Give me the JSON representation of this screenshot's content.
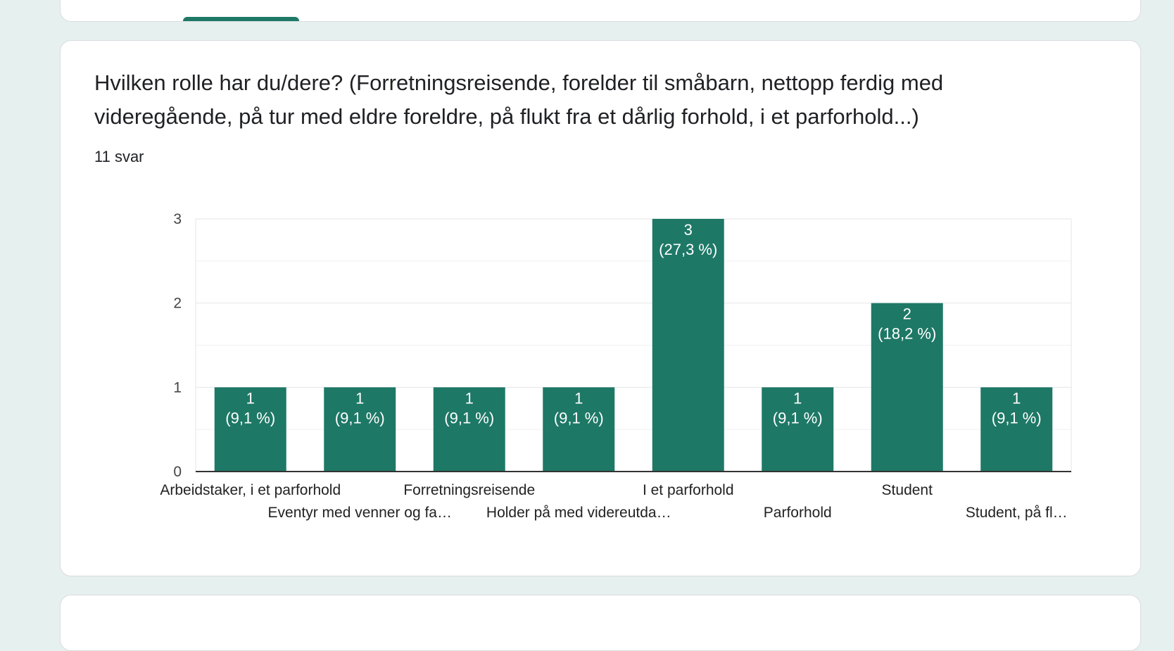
{
  "question": {
    "title": "Hvilken rolle har du/dere? (Forretningsreisende, forelder til småbarn, nettopp ferdig med videregående, på tur med eldre foreldre, på flukt fra et dårlig forhold, i et parforhold...)",
    "response_count": "11 svar"
  },
  "colors": {
    "bar": "#1e7866",
    "bar_label": "#ffffff",
    "page_background": "#e6f0ee",
    "card_background": "#ffffff"
  },
  "chart_data": {
    "type": "bar",
    "categories": [
      "Arbeidstaker, i et parforhold",
      "Eventyr med venner og fa…",
      "Forretningsreisende",
      "Holder på med videreutda…",
      "I et parforhold",
      "Parforhold",
      "Student",
      "Student, på fl…"
    ],
    "values": [
      1,
      1,
      1,
      1,
      3,
      1,
      2,
      1
    ],
    "value_labels": [
      "1",
      "1",
      "1",
      "1",
      "3",
      "1",
      "2",
      "1"
    ],
    "percent_labels": [
      "(9,1 %)",
      "(9,1 %)",
      "(9,1 %)",
      "(9,1 %)",
      "(27,3 %)",
      "(9,1 %)",
      "(18,2 %)",
      "(9,1 %)"
    ],
    "ylim": [
      0,
      3
    ],
    "yticks": [
      "0",
      "1",
      "2",
      "3"
    ],
    "grid": true,
    "legend": "none"
  }
}
